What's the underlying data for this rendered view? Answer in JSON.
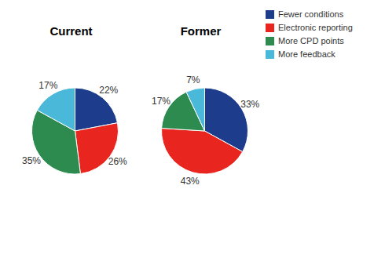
{
  "chart_data": [
    {
      "type": "pie",
      "title": "Current",
      "categories": [
        "Fewer conditions",
        "Electronic reporting",
        "More CPD points",
        "More feedback"
      ],
      "values": [
        22,
        26,
        35,
        17
      ],
      "value_labels": [
        "22%",
        "26%",
        "35%",
        "17%"
      ],
      "colors": [
        "#1e3c8c",
        "#e8251f",
        "#2e8b50",
        "#4ab8d8"
      ],
      "data_labels": true,
      "legend": "upper right"
    },
    {
      "type": "pie",
      "title": "Former",
      "categories": [
        "Fewer conditions",
        "Electronic reporting",
        "More CPD points",
        "More feedback"
      ],
      "values": [
        33,
        43,
        17,
        7
      ],
      "value_labels": [
        "33%",
        "43%",
        "17%",
        "7%"
      ],
      "colors": [
        "#1e3c8c",
        "#e8251f",
        "#2e8b50",
        "#4ab8d8"
      ],
      "data_labels": true,
      "legend": "upper right"
    }
  ]
}
